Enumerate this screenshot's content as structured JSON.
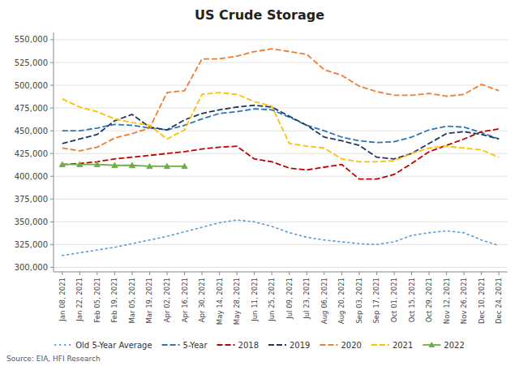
{
  "chart_data": {
    "type": "line",
    "title": "US Crude Storage",
    "annotations": [
      "Source: EIA, HFI Research"
    ],
    "categories": [
      "Jan 08, 2021",
      "Jan 22, 2021",
      "Feb 05, 2021",
      "Feb 19, 2021",
      "Mar 05, 2021",
      "Mar 19, 2021",
      "Apr 02, 2021",
      "Apr 16, 2021",
      "Apr 30, 2021",
      "May 14, 2021",
      "May 28, 2021",
      "Jun 11, 2021",
      "Jun 25, 2021",
      "Jul 09, 2021",
      "Jul 23, 2021",
      "Aug 06, 2021",
      "Aug 20, 2021",
      "Sep 03, 2021",
      "Sep 17, 2021",
      "Oct 01, 2021",
      "Oct 15, 2021",
      "Oct 29, 2021",
      "Nov 12, 2021",
      "Nov 26, 2021",
      "Dec 10, 2021",
      "Dec 24, 2021"
    ],
    "series": [
      {
        "name": "Old 5-Year Average",
        "color": "#5B9BD5",
        "line_style": "dotted",
        "values": [
          313000,
          316000,
          319000,
          322000,
          326000,
          330000,
          334000,
          339000,
          344000,
          349000,
          352000,
          350000,
          345000,
          338000,
          333000,
          330000,
          328000,
          326000,
          325000,
          328000,
          335000,
          338000,
          340000,
          338000,
          330000,
          324000
        ]
      },
      {
        "name": "5-Year",
        "color": "#2E75B6",
        "line_style": "dashed",
        "values": [
          450000,
          450000,
          453000,
          457000,
          456000,
          453000,
          451000,
          456000,
          463000,
          469000,
          471000,
          474000,
          473000,
          465000,
          456000,
          450000,
          443000,
          439000,
          437000,
          438000,
          443000,
          451000,
          455000,
          454000,
          448000,
          441000
        ]
      },
      {
        "name": "2018",
        "color": "#C00000",
        "line_style": "dashed",
        "values": [
          413000,
          414000,
          416000,
          419000,
          421000,
          423000,
          425000,
          427000,
          430000,
          432000,
          433000,
          419000,
          416000,
          409000,
          407000,
          410000,
          413000,
          397000,
          397000,
          402000,
          414000,
          427000,
          434000,
          441000,
          449000,
          452000
        ]
      },
      {
        "name": "2019",
        "color": "#203864",
        "line_style": "dashed",
        "values": [
          436000,
          441000,
          446000,
          461000,
          468000,
          454000,
          451000,
          462000,
          469000,
          473000,
          476000,
          478000,
          476000,
          466000,
          456000,
          443000,
          439000,
          434000,
          421000,
          419000,
          425000,
          436000,
          447000,
          449000,
          446000,
          441000
        ]
      },
      {
        "name": "2020",
        "color": "#ED7D31",
        "line_style": "dashed",
        "values": [
          431000,
          428000,
          432000,
          442000,
          447000,
          453000,
          492000,
          494000,
          529000,
          529000,
          532000,
          537000,
          540000,
          537000,
          534000,
          517000,
          511000,
          499000,
          493000,
          489000,
          489000,
          491000,
          488000,
          490000,
          501000,
          494000
        ]
      },
      {
        "name": "2021",
        "color": "#FFC000",
        "line_style": "dashed",
        "values": [
          485000,
          476000,
          471000,
          463000,
          459000,
          456000,
          441000,
          451000,
          490000,
          492000,
          490000,
          482000,
          477000,
          436000,
          433000,
          431000,
          419000,
          416000,
          416000,
          417000,
          425000,
          431000,
          433000,
          431000,
          429000,
          421000
        ]
      },
      {
        "name": "2022",
        "color": "#70AD47",
        "line_style": "solid",
        "marker": "triangle",
        "values": [
          413000,
          413000,
          413000,
          412000,
          412000,
          411000,
          411000,
          411000,
          null,
          null,
          null,
          null,
          null,
          null,
          null,
          null,
          null,
          null,
          null,
          null,
          null,
          null,
          null,
          null,
          null,
          null
        ]
      }
    ],
    "ylim": [
      295000,
      558000
    ],
    "yticks": [
      {
        "value": 300000,
        "label": "300,000"
      },
      {
        "value": 325000,
        "label": "325,000"
      },
      {
        "value": 350000,
        "label": "350,000"
      },
      {
        "value": 375000,
        "label": "375,000"
      },
      {
        "value": 400000,
        "label": "400,000"
      },
      {
        "value": 425000,
        "label": "425,000"
      },
      {
        "value": 450000,
        "label": "450,000"
      },
      {
        "value": 475000,
        "label": "475,000"
      },
      {
        "value": 500000,
        "label": "500,000"
      },
      {
        "value": 525000,
        "label": "525,000"
      },
      {
        "value": 550000,
        "label": "550,000"
      }
    ],
    "grid": true,
    "legend": "bottom"
  }
}
